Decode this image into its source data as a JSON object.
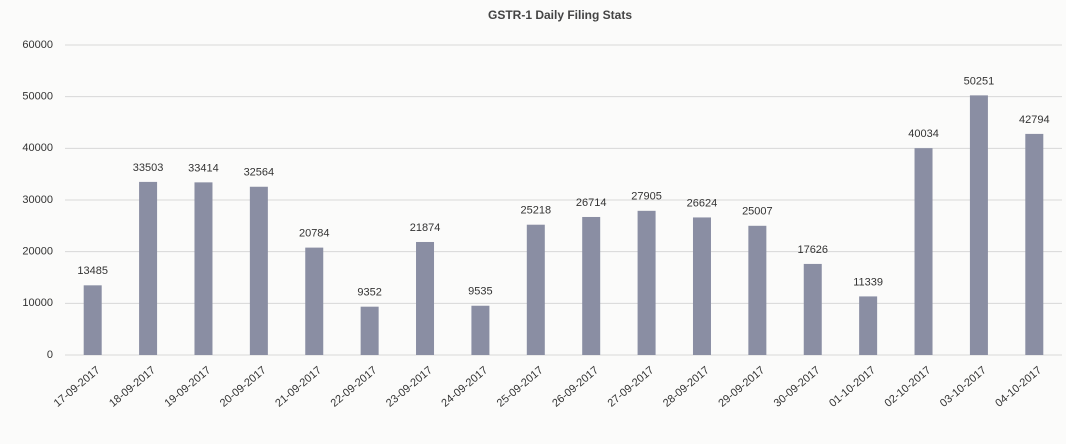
{
  "chart_data": {
    "type": "bar",
    "title": "GSTR-1 Daily Filing Stats",
    "categories": [
      "17-09-2017",
      "18-09-2017",
      "19-09-2017",
      "20-09-2017",
      "21-09-2017",
      "22-09-2017",
      "23-09-2017",
      "24-09-2017",
      "25-09-2017",
      "26-09-2017",
      "27-09-2017",
      "28-09-2017",
      "29-09-2017",
      "30-09-2017",
      "01-10-2017",
      "02-10-2017",
      "03-10-2017",
      "04-10-2017"
    ],
    "values": [
      13485,
      33503,
      33414,
      32564,
      20784,
      9352,
      21874,
      9535,
      25218,
      26714,
      27905,
      26624,
      25007,
      17626,
      11339,
      40034,
      50251,
      42794
    ],
    "color": "#8a8ea3",
    "ylim": [
      0,
      60000
    ],
    "yticks": [
      0,
      10000,
      20000,
      30000,
      40000,
      50000,
      60000
    ],
    "grid": true
  }
}
